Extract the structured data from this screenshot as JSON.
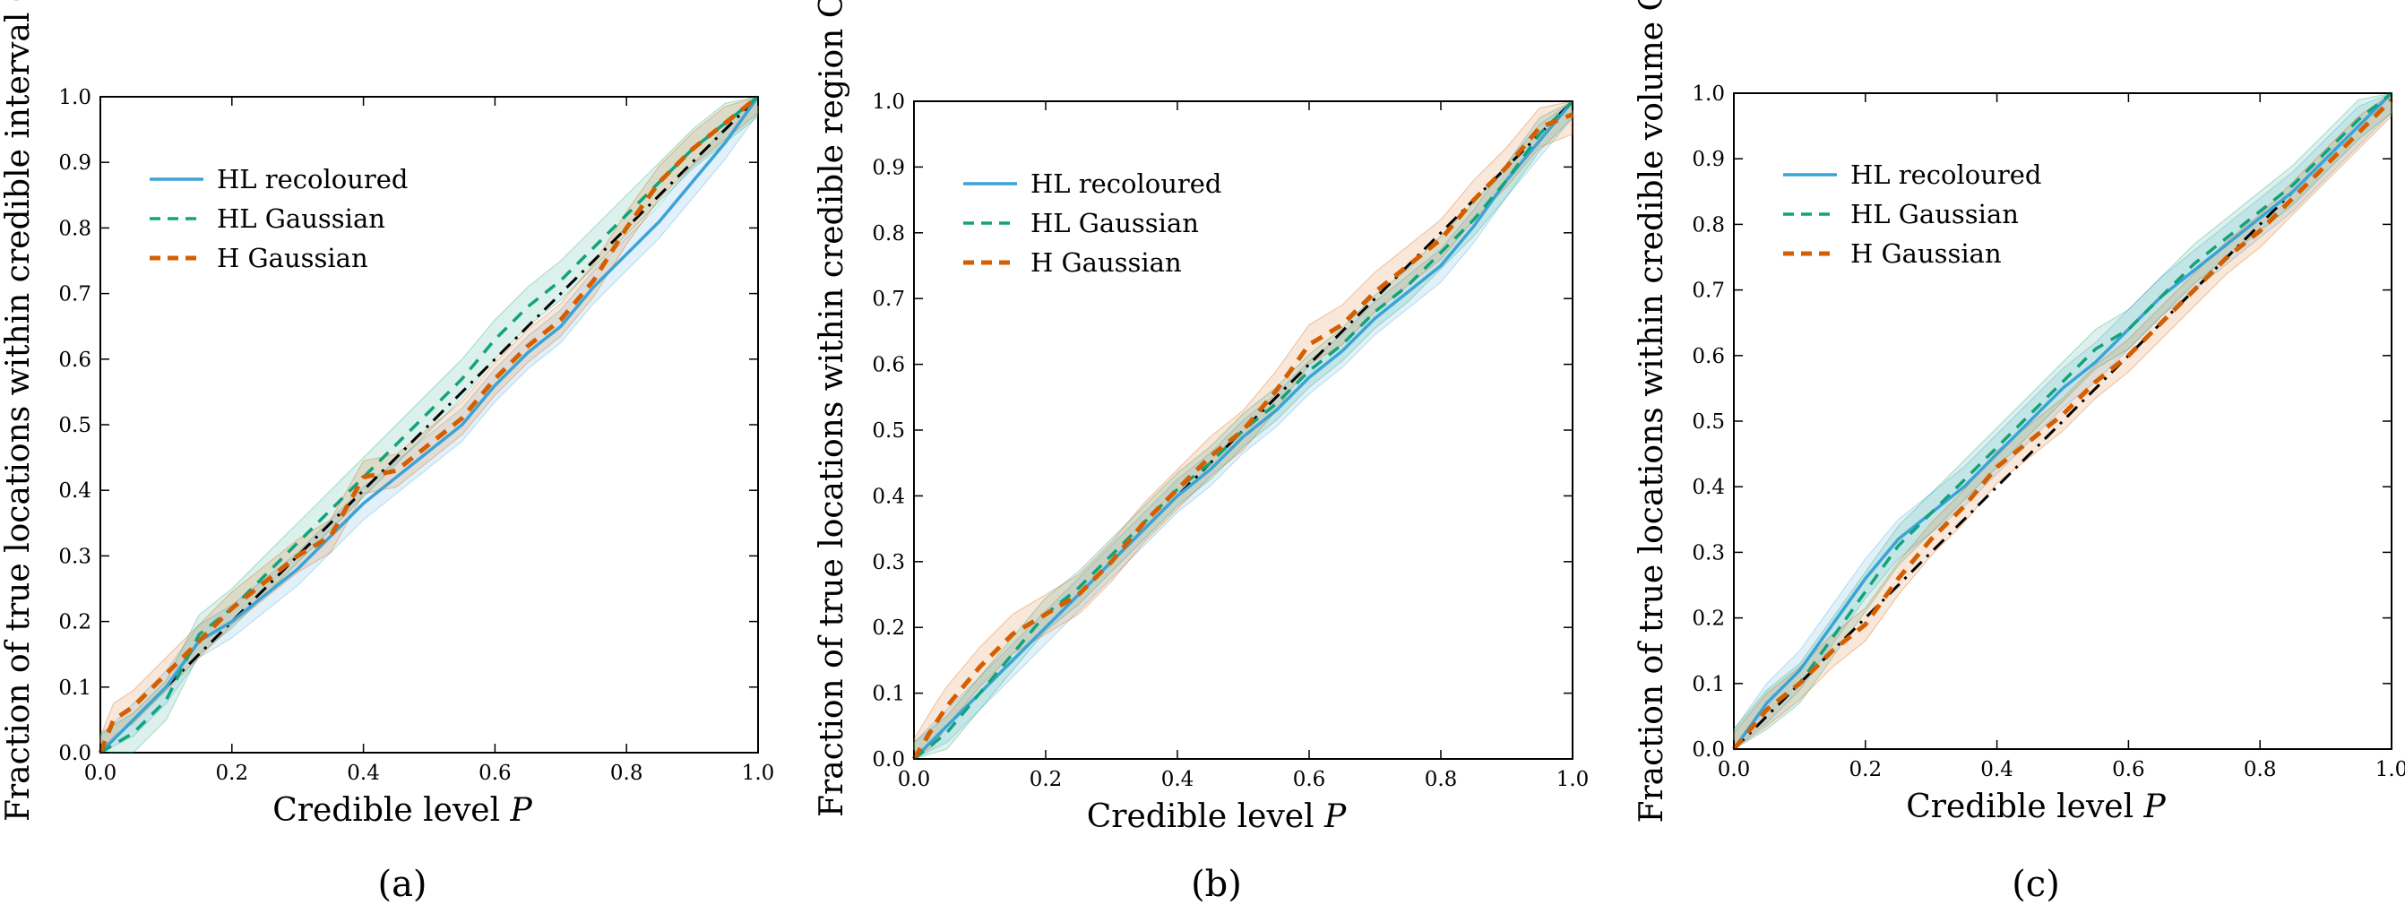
{
  "colors": {
    "hl_recoloured": "#3ba3d6",
    "hl_gaussian": "#11a37a",
    "h_gaussian": "#d55e00",
    "diagonal": "#000000"
  },
  "chart_data": [
    {
      "type": "line",
      "panel_label": "(a)",
      "xlabel": "Credible level P",
      "ylabel": "Fraction of true locations within credible interval CI_P",
      "xlim": [
        0,
        1
      ],
      "ylim": [
        0,
        1
      ],
      "xticks": [
        "0.0",
        "0.2",
        "0.4",
        "0.6",
        "0.8",
        "1.0"
      ],
      "yticks": [
        "0.0",
        "0.1",
        "0.2",
        "0.3",
        "0.4",
        "0.5",
        "0.6",
        "0.7",
        "0.8",
        "0.9",
        "1.0"
      ],
      "legend": {
        "position": "top-left",
        "entries": [
          "HL recoloured",
          "HL Gaussian",
          "H Gaussian"
        ]
      },
      "reference_line": {
        "x": [
          0,
          1
        ],
        "y": [
          0,
          1
        ]
      },
      "series": [
        {
          "name": "HL recoloured",
          "style": "solid",
          "x": [
            0,
            0.05,
            0.1,
            0.15,
            0.2,
            0.25,
            0.3,
            0.35,
            0.4,
            0.45,
            0.5,
            0.55,
            0.6,
            0.65,
            0.7,
            0.75,
            0.8,
            0.85,
            0.9,
            0.95,
            1.0
          ],
          "y": [
            0,
            0.05,
            0.1,
            0.17,
            0.2,
            0.24,
            0.28,
            0.33,
            0.38,
            0.42,
            0.46,
            0.5,
            0.56,
            0.61,
            0.65,
            0.71,
            0.76,
            0.81,
            0.87,
            0.93,
            1.0
          ],
          "band": 0.025
        },
        {
          "name": "HL Gaussian",
          "style": "dashed",
          "x": [
            0,
            0.05,
            0.1,
            0.15,
            0.2,
            0.25,
            0.3,
            0.35,
            0.4,
            0.45,
            0.5,
            0.55,
            0.6,
            0.65,
            0.7,
            0.75,
            0.8,
            0.85,
            0.9,
            0.95,
            1.0
          ],
          "y": [
            0,
            0.03,
            0.08,
            0.18,
            0.22,
            0.27,
            0.32,
            0.37,
            0.42,
            0.47,
            0.52,
            0.57,
            0.63,
            0.68,
            0.72,
            0.77,
            0.82,
            0.87,
            0.92,
            0.96,
            1.0
          ],
          "band": 0.03
        },
        {
          "name": "H Gaussian",
          "style": "dashed",
          "x": [
            0,
            0.02,
            0.05,
            0.1,
            0.15,
            0.2,
            0.25,
            0.3,
            0.35,
            0.4,
            0.45,
            0.5,
            0.55,
            0.6,
            0.65,
            0.7,
            0.75,
            0.8,
            0.85,
            0.9,
            0.95,
            1.0
          ],
          "y": [
            0,
            0.05,
            0.07,
            0.12,
            0.17,
            0.22,
            0.26,
            0.3,
            0.33,
            0.42,
            0.43,
            0.47,
            0.51,
            0.57,
            0.62,
            0.66,
            0.72,
            0.8,
            0.87,
            0.92,
            0.96,
            1.0
          ],
          "band": 0.025
        }
      ]
    },
    {
      "type": "line",
      "panel_label": "(b)",
      "xlabel": "Credible level P",
      "ylabel": "Fraction of true locations within credible region CR_P",
      "xlim": [
        0,
        1
      ],
      "ylim": [
        0,
        1
      ],
      "xticks": [
        "0.0",
        "0.2",
        "0.4",
        "0.6",
        "0.8",
        "1.0"
      ],
      "yticks": [
        "0.0",
        "0.1",
        "0.2",
        "0.3",
        "0.4",
        "0.5",
        "0.6",
        "0.7",
        "0.8",
        "0.9",
        "1.0"
      ],
      "legend": {
        "position": "top-left",
        "entries": [
          "HL recoloured",
          "HL Gaussian",
          "H Gaussian"
        ]
      },
      "reference_line": {
        "x": [
          0,
          1
        ],
        "y": [
          0,
          1
        ]
      },
      "series": [
        {
          "name": "HL recoloured",
          "style": "solid",
          "x": [
            0,
            0.05,
            0.1,
            0.15,
            0.2,
            0.25,
            0.3,
            0.35,
            0.4,
            0.45,
            0.5,
            0.55,
            0.6,
            0.65,
            0.7,
            0.75,
            0.8,
            0.85,
            0.9,
            0.95,
            1.0
          ],
          "y": [
            0,
            0.05,
            0.1,
            0.15,
            0.2,
            0.25,
            0.3,
            0.35,
            0.4,
            0.44,
            0.49,
            0.53,
            0.58,
            0.62,
            0.67,
            0.71,
            0.75,
            0.81,
            0.88,
            0.94,
            1.0
          ],
          "band": 0.025
        },
        {
          "name": "HL Gaussian",
          "style": "dashed",
          "x": [
            0,
            0.05,
            0.1,
            0.15,
            0.2,
            0.25,
            0.3,
            0.35,
            0.4,
            0.45,
            0.5,
            0.55,
            0.6,
            0.65,
            0.7,
            0.75,
            0.8,
            0.85,
            0.9,
            0.95,
            1.0
          ],
          "y": [
            0,
            0.04,
            0.1,
            0.16,
            0.22,
            0.26,
            0.31,
            0.36,
            0.41,
            0.45,
            0.5,
            0.54,
            0.59,
            0.63,
            0.68,
            0.72,
            0.77,
            0.82,
            0.88,
            0.95,
            1.0
          ],
          "band": 0.025
        },
        {
          "name": "H Gaussian",
          "style": "dashed",
          "x": [
            0,
            0.03,
            0.05,
            0.1,
            0.15,
            0.2,
            0.25,
            0.3,
            0.35,
            0.4,
            0.45,
            0.5,
            0.55,
            0.6,
            0.65,
            0.7,
            0.75,
            0.8,
            0.85,
            0.9,
            0.95,
            1.0
          ],
          "y": [
            0,
            0.05,
            0.08,
            0.14,
            0.19,
            0.22,
            0.25,
            0.3,
            0.36,
            0.41,
            0.46,
            0.5,
            0.56,
            0.63,
            0.66,
            0.71,
            0.75,
            0.79,
            0.85,
            0.9,
            0.96,
            0.98
          ],
          "band": 0.03
        }
      ]
    },
    {
      "type": "line",
      "panel_label": "(c)",
      "xlabel": "Credible level P",
      "ylabel": "Fraction of true locations within credible volume CV_P",
      "xlim": [
        0,
        1
      ],
      "ylim": [
        0,
        1
      ],
      "xticks": [
        "0.0",
        "0.2",
        "0.4",
        "0.6",
        "0.8",
        "1.0"
      ],
      "yticks": [
        "0.0",
        "0.1",
        "0.2",
        "0.3",
        "0.4",
        "0.5",
        "0.6",
        "0.7",
        "0.8",
        "0.9",
        "1.0"
      ],
      "legend": {
        "position": "top-left",
        "entries": [
          "HL recoloured",
          "HL Gaussian",
          "H Gaussian"
        ]
      },
      "reference_line": {
        "x": [
          0,
          1
        ],
        "y": [
          0,
          1
        ]
      },
      "series": [
        {
          "name": "HL recoloured",
          "style": "solid",
          "x": [
            0,
            0.05,
            0.1,
            0.15,
            0.2,
            0.25,
            0.3,
            0.35,
            0.4,
            0.45,
            0.5,
            0.55,
            0.6,
            0.65,
            0.7,
            0.75,
            0.8,
            0.85,
            0.9,
            0.95,
            1.0
          ],
          "y": [
            0,
            0.07,
            0.12,
            0.19,
            0.26,
            0.32,
            0.36,
            0.4,
            0.45,
            0.5,
            0.55,
            0.59,
            0.64,
            0.69,
            0.73,
            0.77,
            0.81,
            0.85,
            0.9,
            0.95,
            1.0
          ],
          "band": 0.03
        },
        {
          "name": "HL Gaussian",
          "style": "dashed",
          "x": [
            0,
            0.05,
            0.1,
            0.15,
            0.2,
            0.25,
            0.3,
            0.35,
            0.4,
            0.45,
            0.5,
            0.55,
            0.6,
            0.65,
            0.7,
            0.75,
            0.8,
            0.85,
            0.9,
            0.95,
            1.0
          ],
          "y": [
            0,
            0.06,
            0.1,
            0.17,
            0.24,
            0.31,
            0.36,
            0.41,
            0.46,
            0.51,
            0.56,
            0.61,
            0.64,
            0.69,
            0.74,
            0.78,
            0.82,
            0.86,
            0.91,
            0.96,
            1.0
          ],
          "band": 0.03
        },
        {
          "name": "H Gaussian",
          "style": "dashed",
          "x": [
            0,
            0.05,
            0.1,
            0.15,
            0.2,
            0.25,
            0.3,
            0.35,
            0.4,
            0.45,
            0.5,
            0.55,
            0.6,
            0.65,
            0.7,
            0.75,
            0.8,
            0.85,
            0.9,
            0.95,
            1.0
          ],
          "y": [
            0,
            0.06,
            0.1,
            0.15,
            0.19,
            0.26,
            0.32,
            0.37,
            0.43,
            0.47,
            0.51,
            0.56,
            0.6,
            0.65,
            0.7,
            0.75,
            0.79,
            0.84,
            0.89,
            0.94,
            0.99
          ],
          "band": 0.025
        }
      ]
    }
  ]
}
